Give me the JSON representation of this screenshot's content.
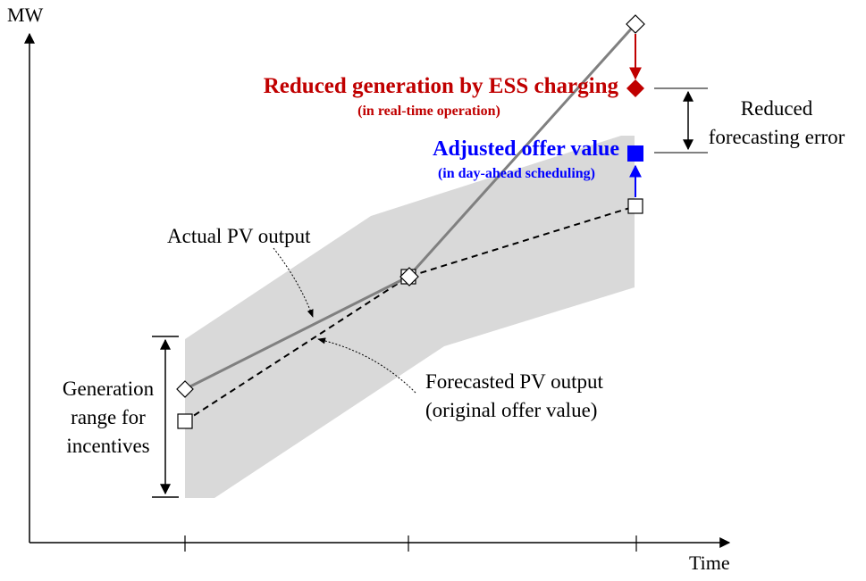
{
  "axes": {
    "y_label": "MW",
    "x_label": "Time"
  },
  "labels": {
    "reduced_generation_title": "Reduced generation by ESS charging",
    "reduced_generation_sub": "(in real-time operation)",
    "adjusted_offer_title": "Adjusted offer value",
    "adjusted_offer_sub": "(in day-ahead scheduling)",
    "reduced_error_line1": "Reduced",
    "reduced_error_line2": "forecasting error",
    "actual_pv": "Actual PV output",
    "forecasted_pv_line1": "Forecasted PV output",
    "forecasted_pv_line2": "(original offer value)",
    "generation_range_line1": "Generation",
    "generation_range_line2": "range for",
    "generation_range_line3": "incentives"
  },
  "colors": {
    "red": "#c00000",
    "blue": "#0000ff",
    "band": "#d9d9d9",
    "actual_line": "#808080",
    "black": "#000000"
  }
}
